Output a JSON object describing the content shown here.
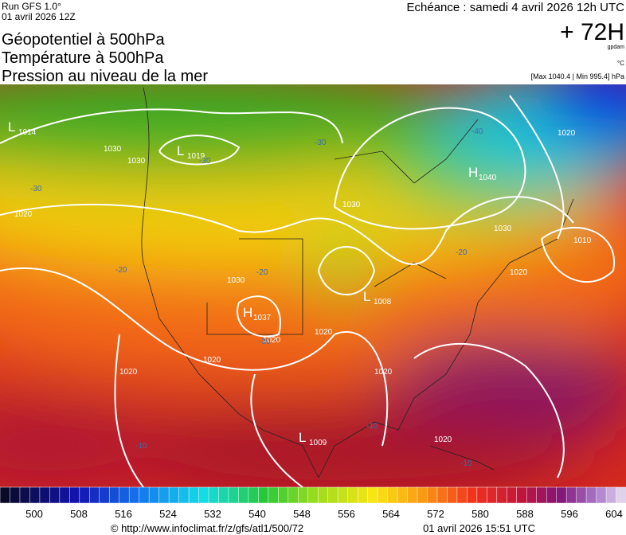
{
  "header": {
    "run": "Run GFS 1.0°",
    "run_date": "01 avril 2026 12Z",
    "titles": [
      "Géopotentiel à 500hPa",
      "Température à 500hPa",
      "Pression au niveau de la mer"
    ],
    "echeance": "Echéance : samedi 4 avril 2026 12h UTC",
    "lead": "+ 72H",
    "unit_geo": "gpdam",
    "unit_temp": "°C",
    "pressure_range": "[Max 1040.4 | Min 995.4] hPa"
  },
  "map": {
    "centers": [
      {
        "letter": "L",
        "value": "1014"
      },
      {
        "letter": "L",
        "value": "1019"
      },
      {
        "letter": "H",
        "value": "1040"
      },
      {
        "letter": "H",
        "value": "1037"
      },
      {
        "letter": "L",
        "value": "1008"
      },
      {
        "letter": "L",
        "value": "1009"
      }
    ],
    "isobar_labels": [
      "1020",
      "1030",
      "1030",
      "1020",
      "1020",
      "1030",
      "1020",
      "1030",
      "1020",
      "1020",
      "1020",
      "1020",
      "1010",
      "1020",
      "1030"
    ],
    "temp_labels": [
      "-30",
      "-30",
      "-30",
      "-20",
      "-20",
      "-40",
      "-20",
      "-30",
      "-10",
      "-10",
      "-10"
    ]
  },
  "colorbar": {
    "labels": [
      500,
      508,
      516,
      524,
      532,
      540,
      548,
      556,
      564,
      572,
      580,
      588,
      596,
      604
    ]
  },
  "footer": {
    "url": "© http://www.infoclimat.fr/z/gfs/atl1/500/72",
    "generated": "01 avril 2026 15:51 UTC"
  }
}
